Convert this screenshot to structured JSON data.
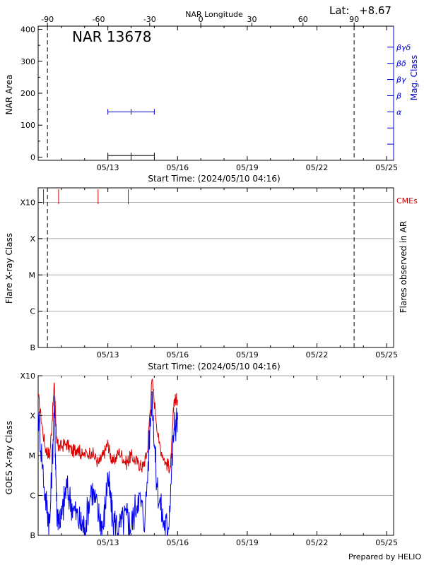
{
  "header": {
    "lat_label": "Lat:",
    "lat_value": "+8.67",
    "credit": "Prepared by HELIO"
  },
  "chart_data": [
    {
      "id": "nar_area",
      "type": "scatter",
      "title": "NAR 13678",
      "top_axis_label": "NAR Longitude",
      "top_ticks": [
        "-90",
        "-60",
        "-30",
        "0",
        "30",
        "60",
        "90"
      ],
      "top_tick_values": [
        -90,
        -60,
        -30,
        0,
        30,
        60,
        90
      ],
      "xlabel": "Start Time: (2024/05/10 04:16)",
      "ylabel": "NAR Area",
      "right_label": "Mag. Class",
      "x_range_days": [
        0,
        15.3
      ],
      "x_ticks": [
        "05/13",
        "05/16",
        "05/19",
        "05/22",
        "05/25"
      ],
      "x_tick_days": [
        3,
        6,
        9,
        12,
        15
      ],
      "y_ticks": [
        "0",
        "100",
        "200",
        "300",
        "400"
      ],
      "y_tick_values": [
        0,
        100,
        200,
        300,
        400
      ],
      "ylim": [
        -10,
        410
      ],
      "mag_classes": [
        "α",
        "β",
        "βγ",
        "βδ",
        "βγδ"
      ],
      "mag_class_values": [
        1,
        2,
        3,
        4,
        5
      ],
      "mag_ylim": [
        -2,
        6.3
      ],
      "limb_lines_days": [
        0.4,
        13.6
      ],
      "area_series": {
        "name": "NAR Area",
        "color": "#000000",
        "x": [
          3.0,
          4.0,
          5.0
        ],
        "y": [
          5,
          5,
          5
        ]
      },
      "mag_series": {
        "name": "Mag. Class",
        "color": "#0000cc",
        "x": [
          3.0,
          4.0,
          5.0
        ],
        "y": [
          1,
          1,
          1
        ]
      }
    },
    {
      "id": "flares",
      "type": "scatter",
      "xlabel": "Start Time: (2024/05/10 04:16)",
      "ylabel": "Flare X-ray Class",
      "right_label": "Flares observed in AR",
      "cme_label": "CMEs",
      "x_range_days": [
        0,
        15.3
      ],
      "x_ticks": [
        "05/13",
        "05/16",
        "05/19",
        "05/22",
        "05/25"
      ],
      "x_tick_days": [
        3,
        6,
        9,
        12,
        15
      ],
      "y_ticks": [
        "B",
        "C",
        "M",
        "X",
        "X10"
      ],
      "y_tick_values": [
        0,
        1,
        2,
        3,
        4
      ],
      "ylim": [
        0,
        4.4
      ],
      "limb_lines_days": [
        0.4,
        13.6
      ],
      "cme_days": [
        0.23,
        0.88,
        2.58,
        3.88
      ],
      "cme_color": "#cc0000"
    },
    {
      "id": "goes",
      "type": "line",
      "xlabel": "",
      "ylabel": "GOES X-ray Class",
      "x_range_days": [
        0,
        15.3
      ],
      "x_ticks": [
        "05/13",
        "05/16",
        "05/19",
        "05/22",
        "05/25"
      ],
      "x_tick_days": [
        3,
        6,
        9,
        12,
        15
      ],
      "y_ticks": [
        "B",
        "C",
        "M",
        "X",
        "X10"
      ],
      "y_tick_values": [
        0,
        1,
        2,
        3,
        4
      ],
      "ylim": [
        0,
        4.0
      ],
      "series": [
        {
          "name": "GOES long channel",
          "color": "#dd0000",
          "x": [
            0,
            0.3,
            0.5,
            0.7,
            0.8,
            0.9,
            1.2,
            1.5,
            1.7,
            1.9,
            2.3,
            2.6,
            2.8,
            3.0,
            3.2,
            3.5,
            3.8,
            4.0,
            4.3,
            4.5,
            4.7,
            4.9,
            5.2,
            5.5,
            5.7,
            5.85,
            6.0
          ],
          "y": [
            3.5,
            2.2,
            2.0,
            3.8,
            2.3,
            2.2,
            2.3,
            2.1,
            2.2,
            2.0,
            2.1,
            1.8,
            2.0,
            2.3,
            1.8,
            2.1,
            1.8,
            2.0,
            1.8,
            1.7,
            2.1,
            3.9,
            2.3,
            1.8,
            1.7,
            3.4,
            3.4
          ]
        },
        {
          "name": "GOES short channel",
          "color": "#0000ee",
          "x": [
            0,
            0.3,
            0.5,
            0.7,
            0.8,
            1.0,
            1.2,
            1.5,
            1.8,
            2.0,
            2.3,
            2.6,
            2.8,
            3.0,
            3.2,
            3.5,
            3.8,
            4.0,
            4.3,
            4.6,
            4.9,
            5.1,
            5.4,
            5.6,
            5.85,
            6.0
          ],
          "y": [
            3.1,
            1.0,
            0.3,
            3.3,
            0.6,
            0.4,
            1.2,
            0.7,
            0.3,
            0.2,
            1.2,
            0.5,
            0.2,
            1.5,
            0.4,
            0.2,
            0.5,
            0.2,
            1.0,
            0.4,
            3.6,
            1.3,
            0.3,
            0.2,
            2.7,
            2.9
          ]
        }
      ]
    }
  ]
}
